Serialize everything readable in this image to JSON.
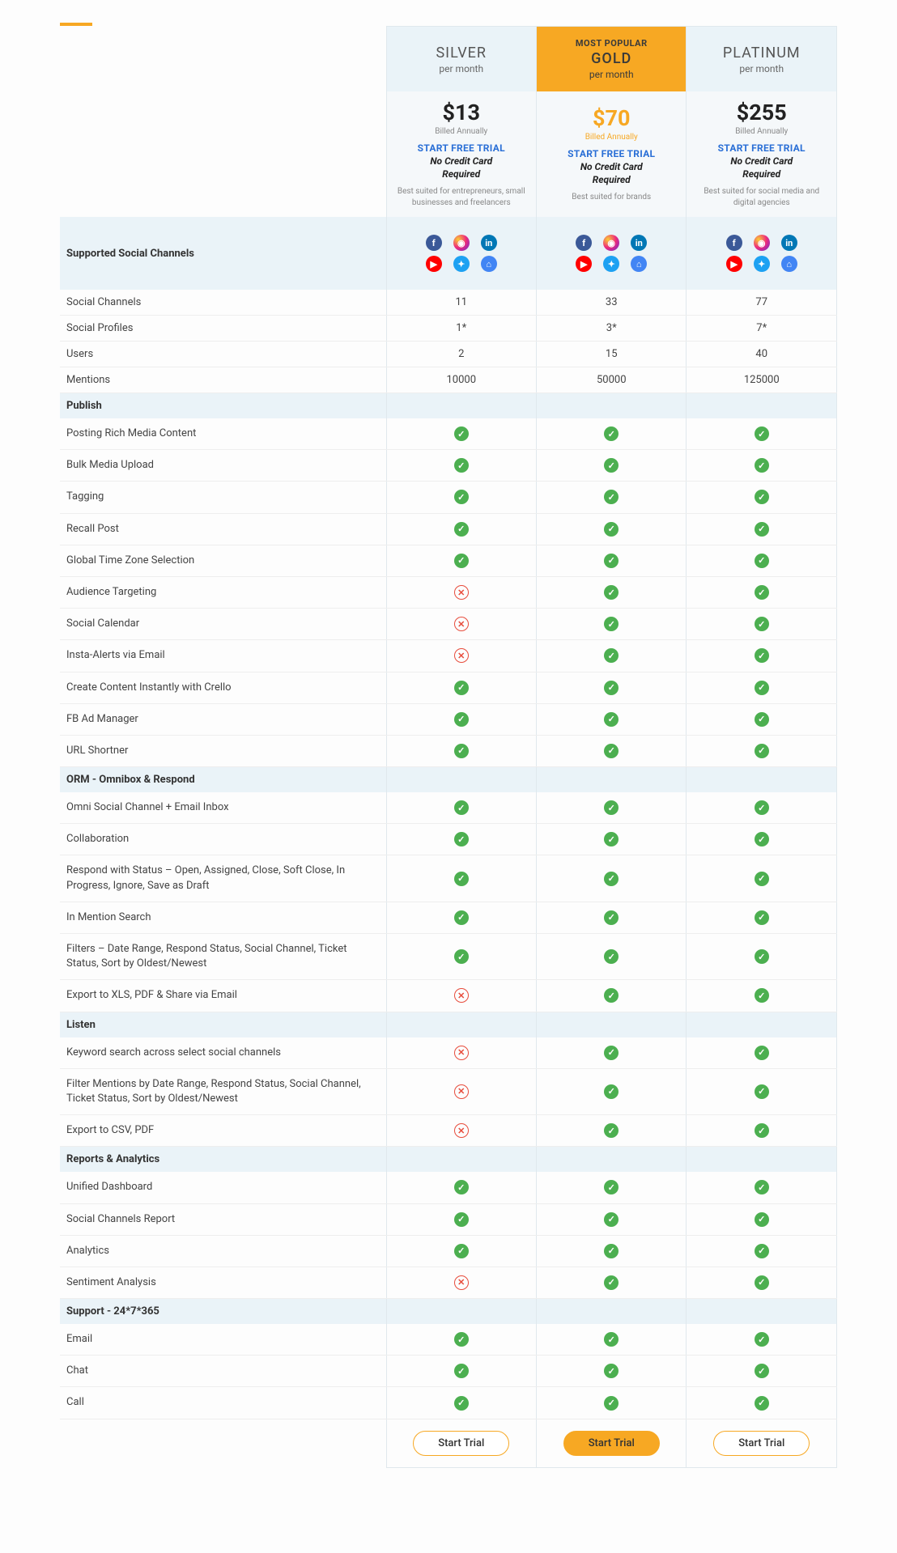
{
  "plans": [
    {
      "id": "silver",
      "name": "SILVER",
      "per_month": "per month",
      "price": "$13",
      "billed": "Billed Annually",
      "cta": "START FREE TRIAL",
      "nocc1": "No Credit Card",
      "nocc2": "Required",
      "best": "Best suited for entrepreneurs, small businesses and freelancers",
      "popular": ""
    },
    {
      "id": "gold",
      "name": "GOLD",
      "per_month": "per month",
      "price": "$70",
      "billed": "Billed Annually",
      "cta": "START FREE TRIAL",
      "nocc1": "No Credit Card",
      "nocc2": "Required",
      "best": "Best suited for brands",
      "popular": "MOST POPULAR"
    },
    {
      "id": "platinum",
      "name": "PLATINUM",
      "per_month": "per month",
      "price": "$255",
      "billed": "Billed Annually",
      "cta": "START FREE TRIAL",
      "nocc1": "No Credit Card",
      "nocc2": "Required",
      "best": "Best suited for social media and digital agencies",
      "popular": ""
    }
  ],
  "channels_label": "Supported Social Channels",
  "metrics": [
    {
      "label": "Social Channels",
      "values": [
        "11",
        "33",
        "77"
      ]
    },
    {
      "label": "Social Profiles",
      "values": [
        "1*",
        "3*",
        "7*"
      ]
    },
    {
      "label": "Users",
      "values": [
        "2",
        "15",
        "40"
      ]
    },
    {
      "label": "Mentions",
      "values": [
        "10000",
        "50000",
        "125000"
      ]
    }
  ],
  "sections": [
    {
      "title": "Publish",
      "features": [
        {
          "label": "Posting Rich Media Content",
          "v": [
            true,
            true,
            true
          ]
        },
        {
          "label": "Bulk Media Upload",
          "v": [
            true,
            true,
            true
          ]
        },
        {
          "label": "Tagging",
          "v": [
            true,
            true,
            true
          ]
        },
        {
          "label": "Recall Post",
          "v": [
            true,
            true,
            true
          ]
        },
        {
          "label": "Global Time Zone Selection",
          "v": [
            true,
            true,
            true
          ]
        },
        {
          "label": "Audience Targeting",
          "v": [
            false,
            true,
            true
          ]
        },
        {
          "label": "Social Calendar",
          "v": [
            false,
            true,
            true
          ]
        },
        {
          "label": "Insta-Alerts via Email",
          "v": [
            false,
            true,
            true
          ]
        },
        {
          "label": "Create Content Instantly with Crello",
          "v": [
            true,
            true,
            true
          ]
        },
        {
          "label": "FB Ad Manager",
          "v": [
            true,
            true,
            true
          ]
        },
        {
          "label": "URL Shortner",
          "v": [
            true,
            true,
            true
          ]
        }
      ]
    },
    {
      "title": "ORM - Omnibox & Respond",
      "features": [
        {
          "label": "Omni Social Channel + Email Inbox",
          "v": [
            true,
            true,
            true
          ]
        },
        {
          "label": "Collaboration",
          "v": [
            true,
            true,
            true
          ]
        },
        {
          "label": "Respond with Status – Open, Assigned, Close, Soft Close, In Progress, Ignore, Save as Draft",
          "v": [
            true,
            true,
            true
          ]
        },
        {
          "label": "In Mention Search",
          "v": [
            true,
            true,
            true
          ]
        },
        {
          "label": "Filters – Date Range, Respond Status, Social Channel, Ticket Status, Sort by Oldest/Newest",
          "v": [
            true,
            true,
            true
          ]
        },
        {
          "label": "Export to XLS, PDF & Share via Email",
          "v": [
            false,
            true,
            true
          ]
        }
      ]
    },
    {
      "title": "Listen",
      "features": [
        {
          "label": "Keyword search across select social channels",
          "v": [
            false,
            true,
            true
          ]
        },
        {
          "label": "Filter Mentions by Date Range, Respond Status,\nSocial Channel, Ticket Status, Sort by Oldest/Newest",
          "v": [
            false,
            true,
            true
          ]
        },
        {
          "label": "Export to CSV, PDF",
          "v": [
            false,
            true,
            true
          ]
        }
      ]
    },
    {
      "title": "Reports & Analytics",
      "features": [
        {
          "label": "Unified Dashboard",
          "v": [
            true,
            true,
            true
          ]
        },
        {
          "label": "Social Channels Report",
          "v": [
            true,
            true,
            true
          ]
        },
        {
          "label": "Analytics",
          "v": [
            true,
            true,
            true
          ]
        },
        {
          "label": "Sentiment Analysis",
          "v": [
            false,
            true,
            true
          ]
        }
      ]
    },
    {
      "title": "Support - 24*7*365",
      "features": [
        {
          "label": "Email",
          "v": [
            true,
            true,
            true
          ]
        },
        {
          "label": "Chat",
          "v": [
            true,
            true,
            true
          ]
        },
        {
          "label": "Call",
          "v": [
            true,
            true,
            true
          ]
        }
      ]
    }
  ],
  "footer_cta": "Start Trial"
}
